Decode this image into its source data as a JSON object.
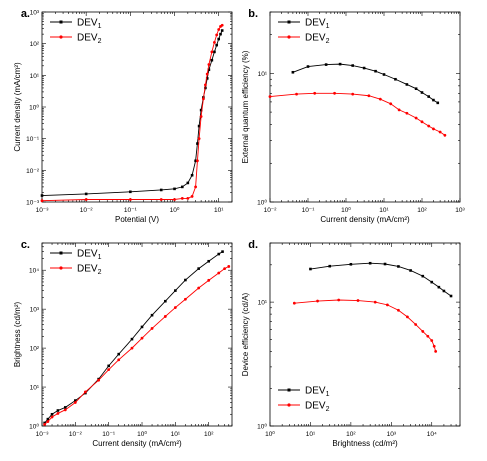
{
  "figure": {
    "colors": {
      "DEV1": "#000000",
      "DEV2": "#ff0000"
    }
  },
  "chart_data": [
    {
      "panel_label": "a.",
      "type": "line",
      "xscale": "log",
      "yscale": "log",
      "xlabel": "Potential (V)",
      "ylabel": "Current density (mA/cm²)",
      "xlim": [
        0.001,
        20
      ],
      "ylim": [
        0.001,
        1000
      ],
      "xticks": [
        "10⁻³",
        "10⁻²",
        "10⁻¹",
        "10⁰",
        "10¹"
      ],
      "yticks": [
        "10⁻³",
        "10⁻²",
        "10⁻¹",
        "10⁰",
        "10¹",
        "10²",
        "10³"
      ],
      "legend": {
        "placement": "top-left",
        "entries": [
          {
            "base": "DEV",
            "sub": "1"
          },
          {
            "base": "DEV",
            "sub": "2"
          }
        ]
      },
      "series": [
        {
          "name": "DEV1",
          "x": [
            0.001,
            0.01,
            0.1,
            0.5,
            1.0,
            1.5,
            2.0,
            2.5,
            3.0,
            3.3,
            3.6,
            4.0,
            4.5,
            5.0,
            5.5,
            6.0,
            7.0,
            8.0,
            9.0,
            10.0,
            11.0,
            12.0
          ],
          "y": [
            0.0016,
            0.0018,
            0.0021,
            0.0024,
            0.0026,
            0.003,
            0.004,
            0.007,
            0.02,
            0.07,
            0.25,
            0.8,
            2.0,
            4.0,
            8.0,
            15.0,
            30.0,
            55.0,
            90.0,
            140.0,
            200.0,
            260.0
          ]
        },
        {
          "name": "DEV2",
          "x": [
            0.001,
            0.01,
            0.1,
            0.5,
            1.0,
            1.5,
            2.0,
            2.5,
            3.0,
            3.3,
            3.6,
            4.0,
            4.5,
            5.0,
            5.5,
            6.0,
            7.0,
            8.0,
            9.0,
            10.0,
            11.0,
            12.0
          ],
          "y": [
            0.0011,
            0.0012,
            0.0012,
            0.0012,
            0.0012,
            0.0013,
            0.0013,
            0.0015,
            0.003,
            0.02,
            0.1,
            0.5,
            1.8,
            5.0,
            11.0,
            22.0,
            55.0,
            110.0,
            190.0,
            280.0,
            350.0,
            380.0
          ]
        }
      ]
    },
    {
      "panel_label": "b.",
      "type": "line",
      "xscale": "log",
      "yscale": "log",
      "xlabel": "Current density (mA/cm²)",
      "ylabel": "External quantum efficiency (%)",
      "xlim": [
        0.01,
        1000
      ],
      "ylim": [
        1,
        30
      ],
      "xticks": [
        "10⁻²",
        "10⁻¹",
        "10⁰",
        "10¹",
        "10²",
        "10³"
      ],
      "yticks": [
        "10⁰",
        "10¹"
      ],
      "legend": {
        "placement": "top-left",
        "entries": [
          {
            "base": "DEV",
            "sub": "1"
          },
          {
            "base": "DEV",
            "sub": "2"
          }
        ]
      },
      "series": [
        {
          "name": "DEV1",
          "x": [
            0.04,
            0.1,
            0.3,
            0.7,
            1.5,
            3,
            6,
            10,
            20,
            40,
            70,
            100,
            150,
            200,
            260
          ],
          "y": [
            10.2,
            11.3,
            11.7,
            11.8,
            11.5,
            11.0,
            10.4,
            9.8,
            9.0,
            8.2,
            7.6,
            7.1,
            6.6,
            6.2,
            5.9
          ]
        },
        {
          "name": "DEV2",
          "x": [
            0.01,
            0.05,
            0.15,
            0.5,
            1.5,
            4,
            8,
            15,
            25,
            40,
            70,
            100,
            150,
            200,
            300,
            400
          ],
          "y": [
            6.6,
            6.9,
            7.0,
            7.0,
            6.9,
            6.7,
            6.3,
            5.8,
            5.2,
            4.9,
            4.5,
            4.2,
            3.9,
            3.7,
            3.5,
            3.3
          ]
        }
      ]
    },
    {
      "panel_label": "c.",
      "type": "line",
      "xscale": "log",
      "yscale": "log",
      "xlabel": "Current density (mA/cm²)",
      "ylabel": "Brightness (cd/m²)",
      "xlim": [
        0.001,
        500
      ],
      "ylim": [
        1,
        50000
      ],
      "xticks": [
        "10⁻³",
        "10⁻²",
        "10⁻¹",
        "10⁰",
        "10¹",
        "10²"
      ],
      "yticks": [
        "10⁰",
        "10¹",
        "10²",
        "10³",
        "10⁴"
      ],
      "legend": {
        "placement": "top-left",
        "entries": [
          {
            "base": "DEV",
            "sub": "1"
          },
          {
            "base": "DEV",
            "sub": "2"
          }
        ]
      },
      "series": [
        {
          "name": "DEV1",
          "x": [
            0.0012,
            0.0015,
            0.002,
            0.003,
            0.005,
            0.01,
            0.02,
            0.05,
            0.1,
            0.2,
            0.5,
            1,
            2,
            5,
            10,
            20,
            50,
            100,
            200,
            260
          ],
          "y": [
            1.2,
            1.5,
            2.0,
            2.5,
            3.0,
            4.5,
            7.0,
            16,
            35,
            70,
            170,
            350,
            700,
            1600,
            3000,
            5600,
            11000,
            17000,
            26000,
            30000
          ]
        },
        {
          "name": "DEV2",
          "x": [
            0.0012,
            0.0015,
            0.002,
            0.003,
            0.005,
            0.01,
            0.02,
            0.05,
            0.1,
            0.2,
            0.5,
            1,
            2,
            5,
            10,
            20,
            50,
            100,
            200,
            300,
            400
          ],
          "y": [
            1.1,
            1.3,
            1.7,
            2.1,
            2.6,
            4.0,
            7.5,
            15,
            28,
            50,
            100,
            180,
            320,
            650,
            1100,
            1800,
            3500,
            5500,
            8500,
            11000,
            12500
          ]
        }
      ]
    },
    {
      "panel_label": "d.",
      "type": "line",
      "xscale": "log",
      "yscale": "log",
      "xlabel": "Brightness (cd/m²)",
      "ylabel": "Device efficiency (cd/A)",
      "xlim": [
        1,
        50000
      ],
      "ylim": [
        1,
        30
      ],
      "xticks": [
        "10⁰",
        "10¹",
        "10²",
        "10³",
        "10⁴"
      ],
      "yticks": [
        "10⁰",
        "10¹"
      ],
      "legend": {
        "placement": "bottom-left",
        "entries": [
          {
            "base": "DEV",
            "sub": "1"
          },
          {
            "base": "DEV",
            "sub": "2"
          }
        ]
      },
      "series": [
        {
          "name": "DEV1",
          "x": [
            10,
            30,
            100,
            300,
            700,
            1500,
            3000,
            6000,
            10000,
            15000,
            20000,
            30000
          ],
          "y": [
            18.5,
            19.5,
            20.2,
            20.6,
            20.3,
            19.4,
            18.0,
            16.2,
            14.5,
            13.2,
            12.3,
            11.2
          ]
        },
        {
          "name": "DEV2",
          "x": [
            4,
            15,
            50,
            150,
            400,
            800,
            1500,
            2500,
            4000,
            6000,
            8000,
            10000,
            11500,
            12500
          ],
          "y": [
            9.8,
            10.2,
            10.4,
            10.3,
            10.0,
            9.5,
            8.6,
            7.6,
            6.6,
            5.8,
            5.3,
            4.9,
            4.4,
            4.0
          ]
        }
      ]
    }
  ]
}
